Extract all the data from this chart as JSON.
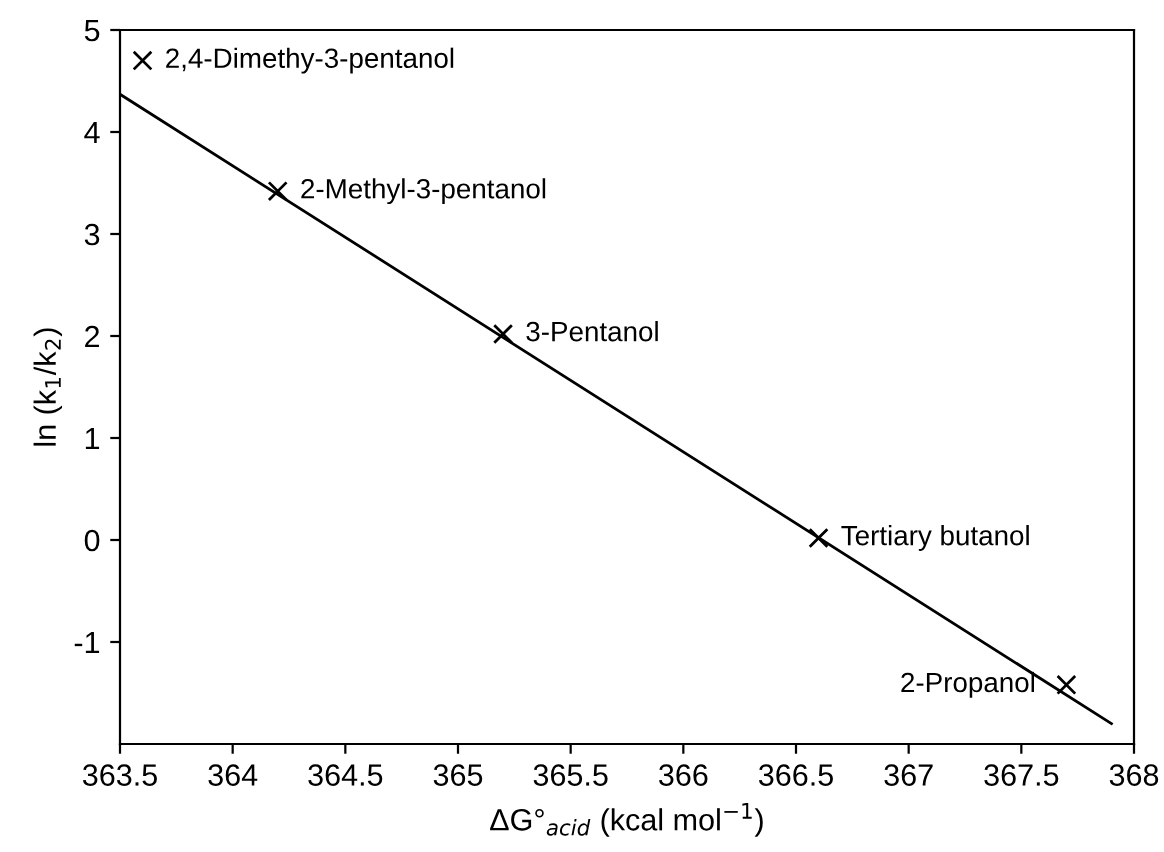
{
  "chart_data": {
    "type": "scatter",
    "xlabel": "ΔG°$_{acid}$ (kcal mol$^{−1}$)",
    "ylabel": "ln (k$_{1}$/k$_{2}$)",
    "xlim": [
      363.5,
      368
    ],
    "ylim": [
      -2,
      5
    ],
    "xticks": [
      363.5,
      364,
      364.5,
      365,
      365.5,
      366,
      366.5,
      367,
      367.5,
      368
    ],
    "yticks": [
      -1,
      0,
      1,
      2,
      3,
      4,
      5
    ],
    "grid": false,
    "legend": false,
    "series": [
      {
        "color": "#000000",
        "marker": "cross",
        "x": [
          363.6,
          364.2,
          365.2,
          366.6,
          367.7
        ],
        "values": [
          4.7,
          3.42,
          2.02,
          0.02,
          -1.42
        ]
      },
      {
        "type": "line",
        "marker": "none",
        "color": "#000000",
        "x": [
          363.5,
          367.9
        ],
        "values": [
          4.37,
          -1.8
        ]
      }
    ],
    "annotations": [
      {
        "text": "2,4-Dimethy-3-pentanol",
        "x": 363.6,
        "y": 4.7
      },
      {
        "text": "2-Methyl-3-pentanol",
        "x": 364.2,
        "y": 3.42
      },
      {
        "text": "3-Pentanol",
        "x": 365.2,
        "y": 2.02
      },
      {
        "text": "Tertiary butanol",
        "x": 366.6,
        "y": 0.02
      },
      {
        "text": "2-Propanol",
        "x": 367.7,
        "y": -1.42
      }
    ]
  }
}
